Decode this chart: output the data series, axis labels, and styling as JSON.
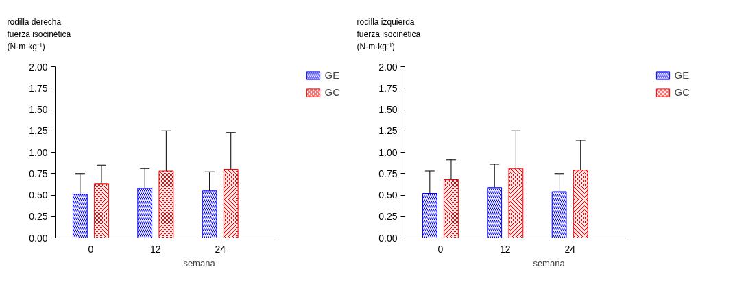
{
  "chart_data": [
    {
      "type": "bar",
      "ylabel": "rodilla derecha\nfuerza isocinética\n(N·m·kg⁻¹)",
      "xlabel": "semana",
      "categories": [
        "0",
        "12",
        "24"
      ],
      "ylim": [
        0,
        2
      ],
      "yticks": [
        {
          "value": 0,
          "label": "0.00"
        },
        {
          "value": 0.25,
          "label": "0.25"
        },
        {
          "value": 0.5,
          "label": "0.50"
        },
        {
          "value": 0.75,
          "label": "0.75"
        },
        {
          "value": 1,
          "label": "1.00"
        },
        {
          "value": 1.25,
          "label": "1.25"
        },
        {
          "value": 1.5,
          "label": "1.50"
        },
        {
          "value": 1.75,
          "label": "1.75"
        },
        {
          "value": 2,
          "label": "2.00"
        }
      ],
      "grid": false,
      "legend": "top right",
      "series": [
        {
          "name": "GE",
          "color": "#0000ff",
          "values": [
            0.51,
            0.58,
            0.55
          ],
          "errors": [
            [
              0.51,
              0.75
            ],
            [
              0.58,
              0.81
            ],
            [
              0.55,
              0.77
            ]
          ]
        },
        {
          "name": "GC",
          "color": "#ff0000",
          "values": [
            0.63,
            0.78,
            0.8
          ],
          "errors": [
            [
              0.63,
              0.85
            ],
            [
              0.78,
              1.25
            ],
            [
              0.8,
              1.23
            ]
          ]
        }
      ]
    },
    {
      "type": "bar",
      "ylabel": "rodilla izquierda\nfuerza isocinética\n(N·m·kg⁻¹)",
      "xlabel": "semana",
      "categories": [
        "0",
        "12",
        "24"
      ],
      "ylim": [
        0,
        2
      ],
      "yticks": [
        {
          "value": 0,
          "label": "0.00"
        },
        {
          "value": 0.25,
          "label": "0.25"
        },
        {
          "value": 0.5,
          "label": "0.50"
        },
        {
          "value": 0.75,
          "label": "0.75"
        },
        {
          "value": 1,
          "label": "1.00"
        },
        {
          "value": 1.25,
          "label": "1.25"
        },
        {
          "value": 1.5,
          "label": "1.50"
        },
        {
          "value": 1.75,
          "label": "1.75"
        },
        {
          "value": 2,
          "label": "2.00"
        }
      ],
      "grid": false,
      "legend": "top right",
      "series": [
        {
          "name": "GE",
          "color": "#0000ff",
          "values": [
            0.52,
            0.59,
            0.54
          ],
          "errors": [
            [
              0.52,
              0.78
            ],
            [
              0.59,
              0.86
            ],
            [
              0.54,
              0.75
            ]
          ]
        },
        {
          "name": "GC",
          "color": "#ff0000",
          "values": [
            0.68,
            0.81,
            0.79
          ],
          "errors": [
            [
              0.68,
              0.91
            ],
            [
              0.81,
              1.25
            ],
            [
              0.79,
              1.14
            ]
          ]
        }
      ]
    }
  ]
}
